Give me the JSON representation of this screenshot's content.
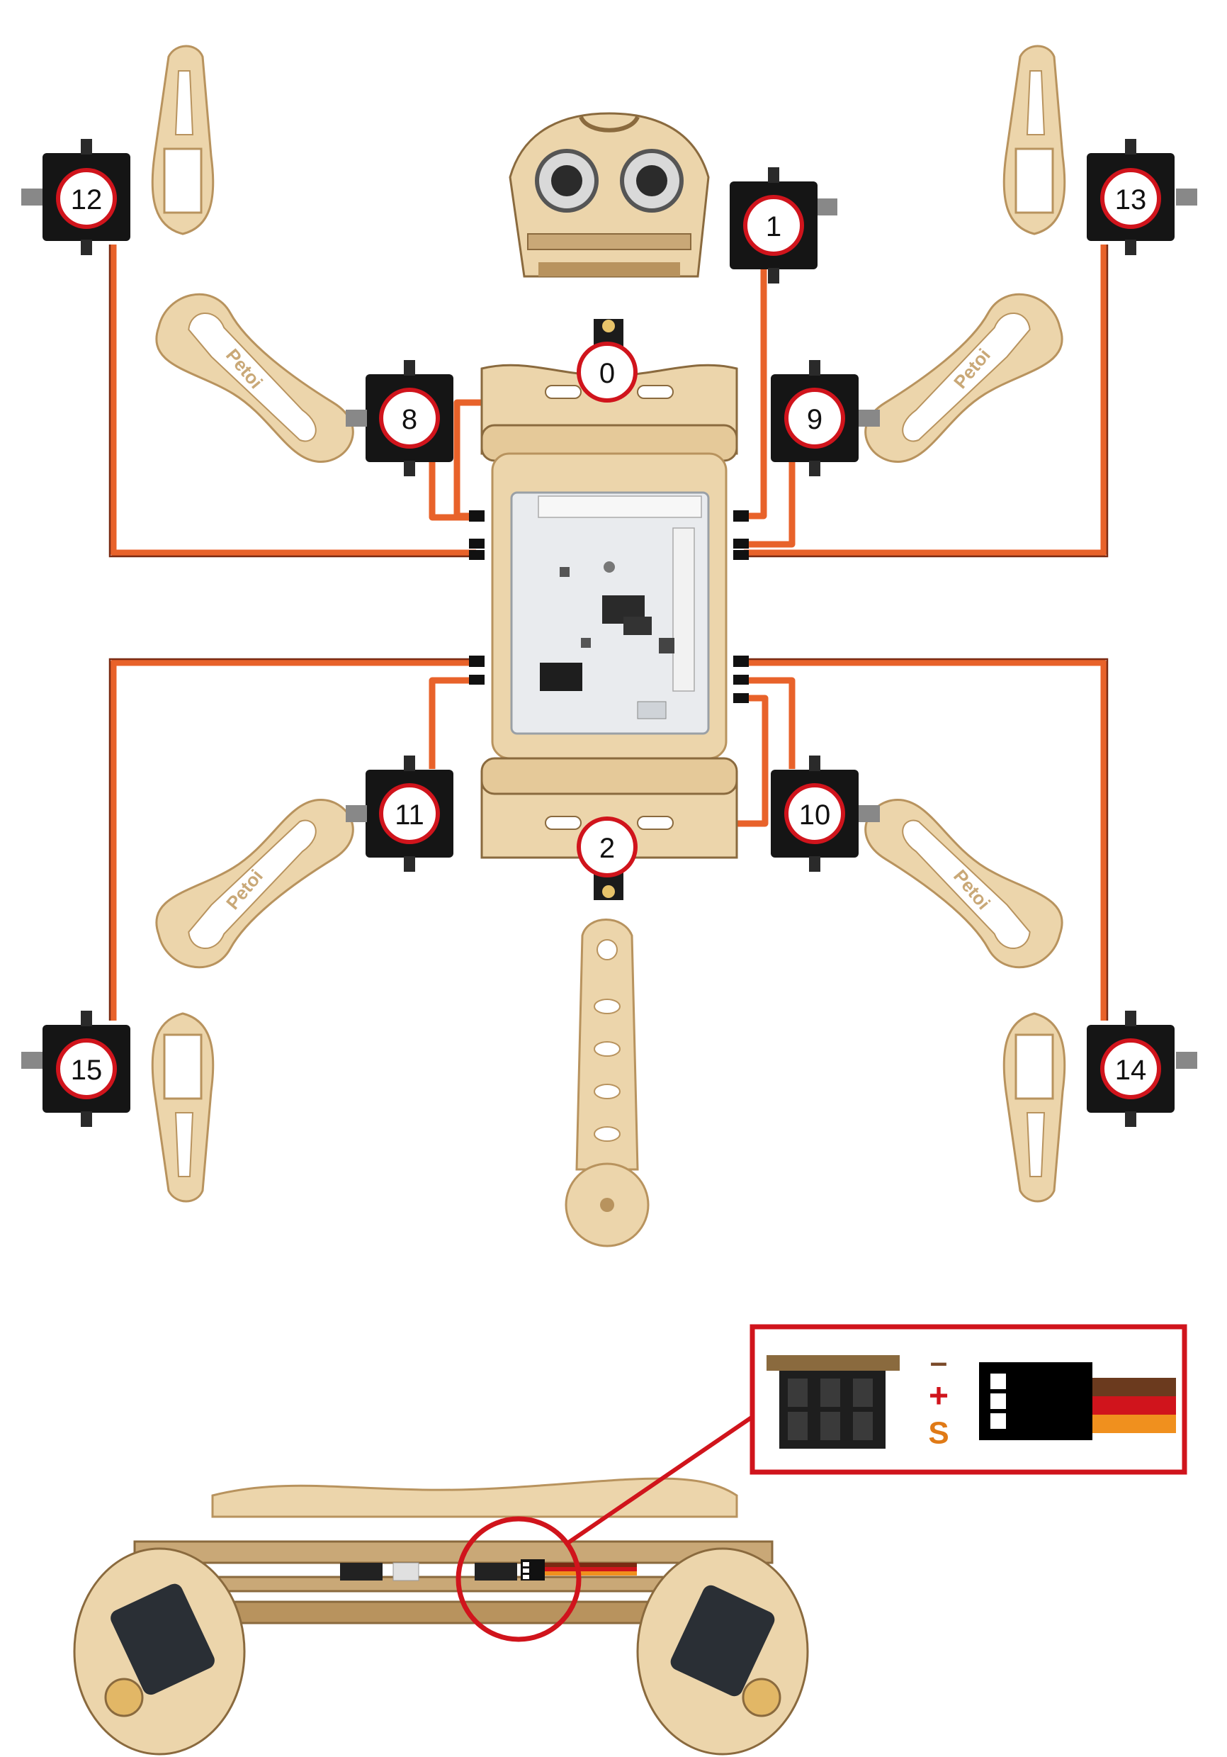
{
  "servo_labels": {
    "s0": "0",
    "s1": "1",
    "s2": "2",
    "s8": "8",
    "s9": "9",
    "s10": "10",
    "s11": "11",
    "s12": "12",
    "s13": "13",
    "s14": "14",
    "s15": "15"
  },
  "part_logo": "Petoi",
  "pin_legend": {
    "minus": "–",
    "plus": "+",
    "signal": "S"
  },
  "colors": {
    "wire_orange": "#e8622a",
    "wire_red": "#c42618",
    "wire_brown": "#6b3a1e",
    "callout": "#d0141c",
    "wood": "#ecd5ab",
    "wood_edge": "#b8935e",
    "servo": "#151515",
    "board": "#e9ebee",
    "minus_color": "#7a4a2a",
    "plus_color": "#d0141c",
    "signal_color": "#e07a16"
  }
}
